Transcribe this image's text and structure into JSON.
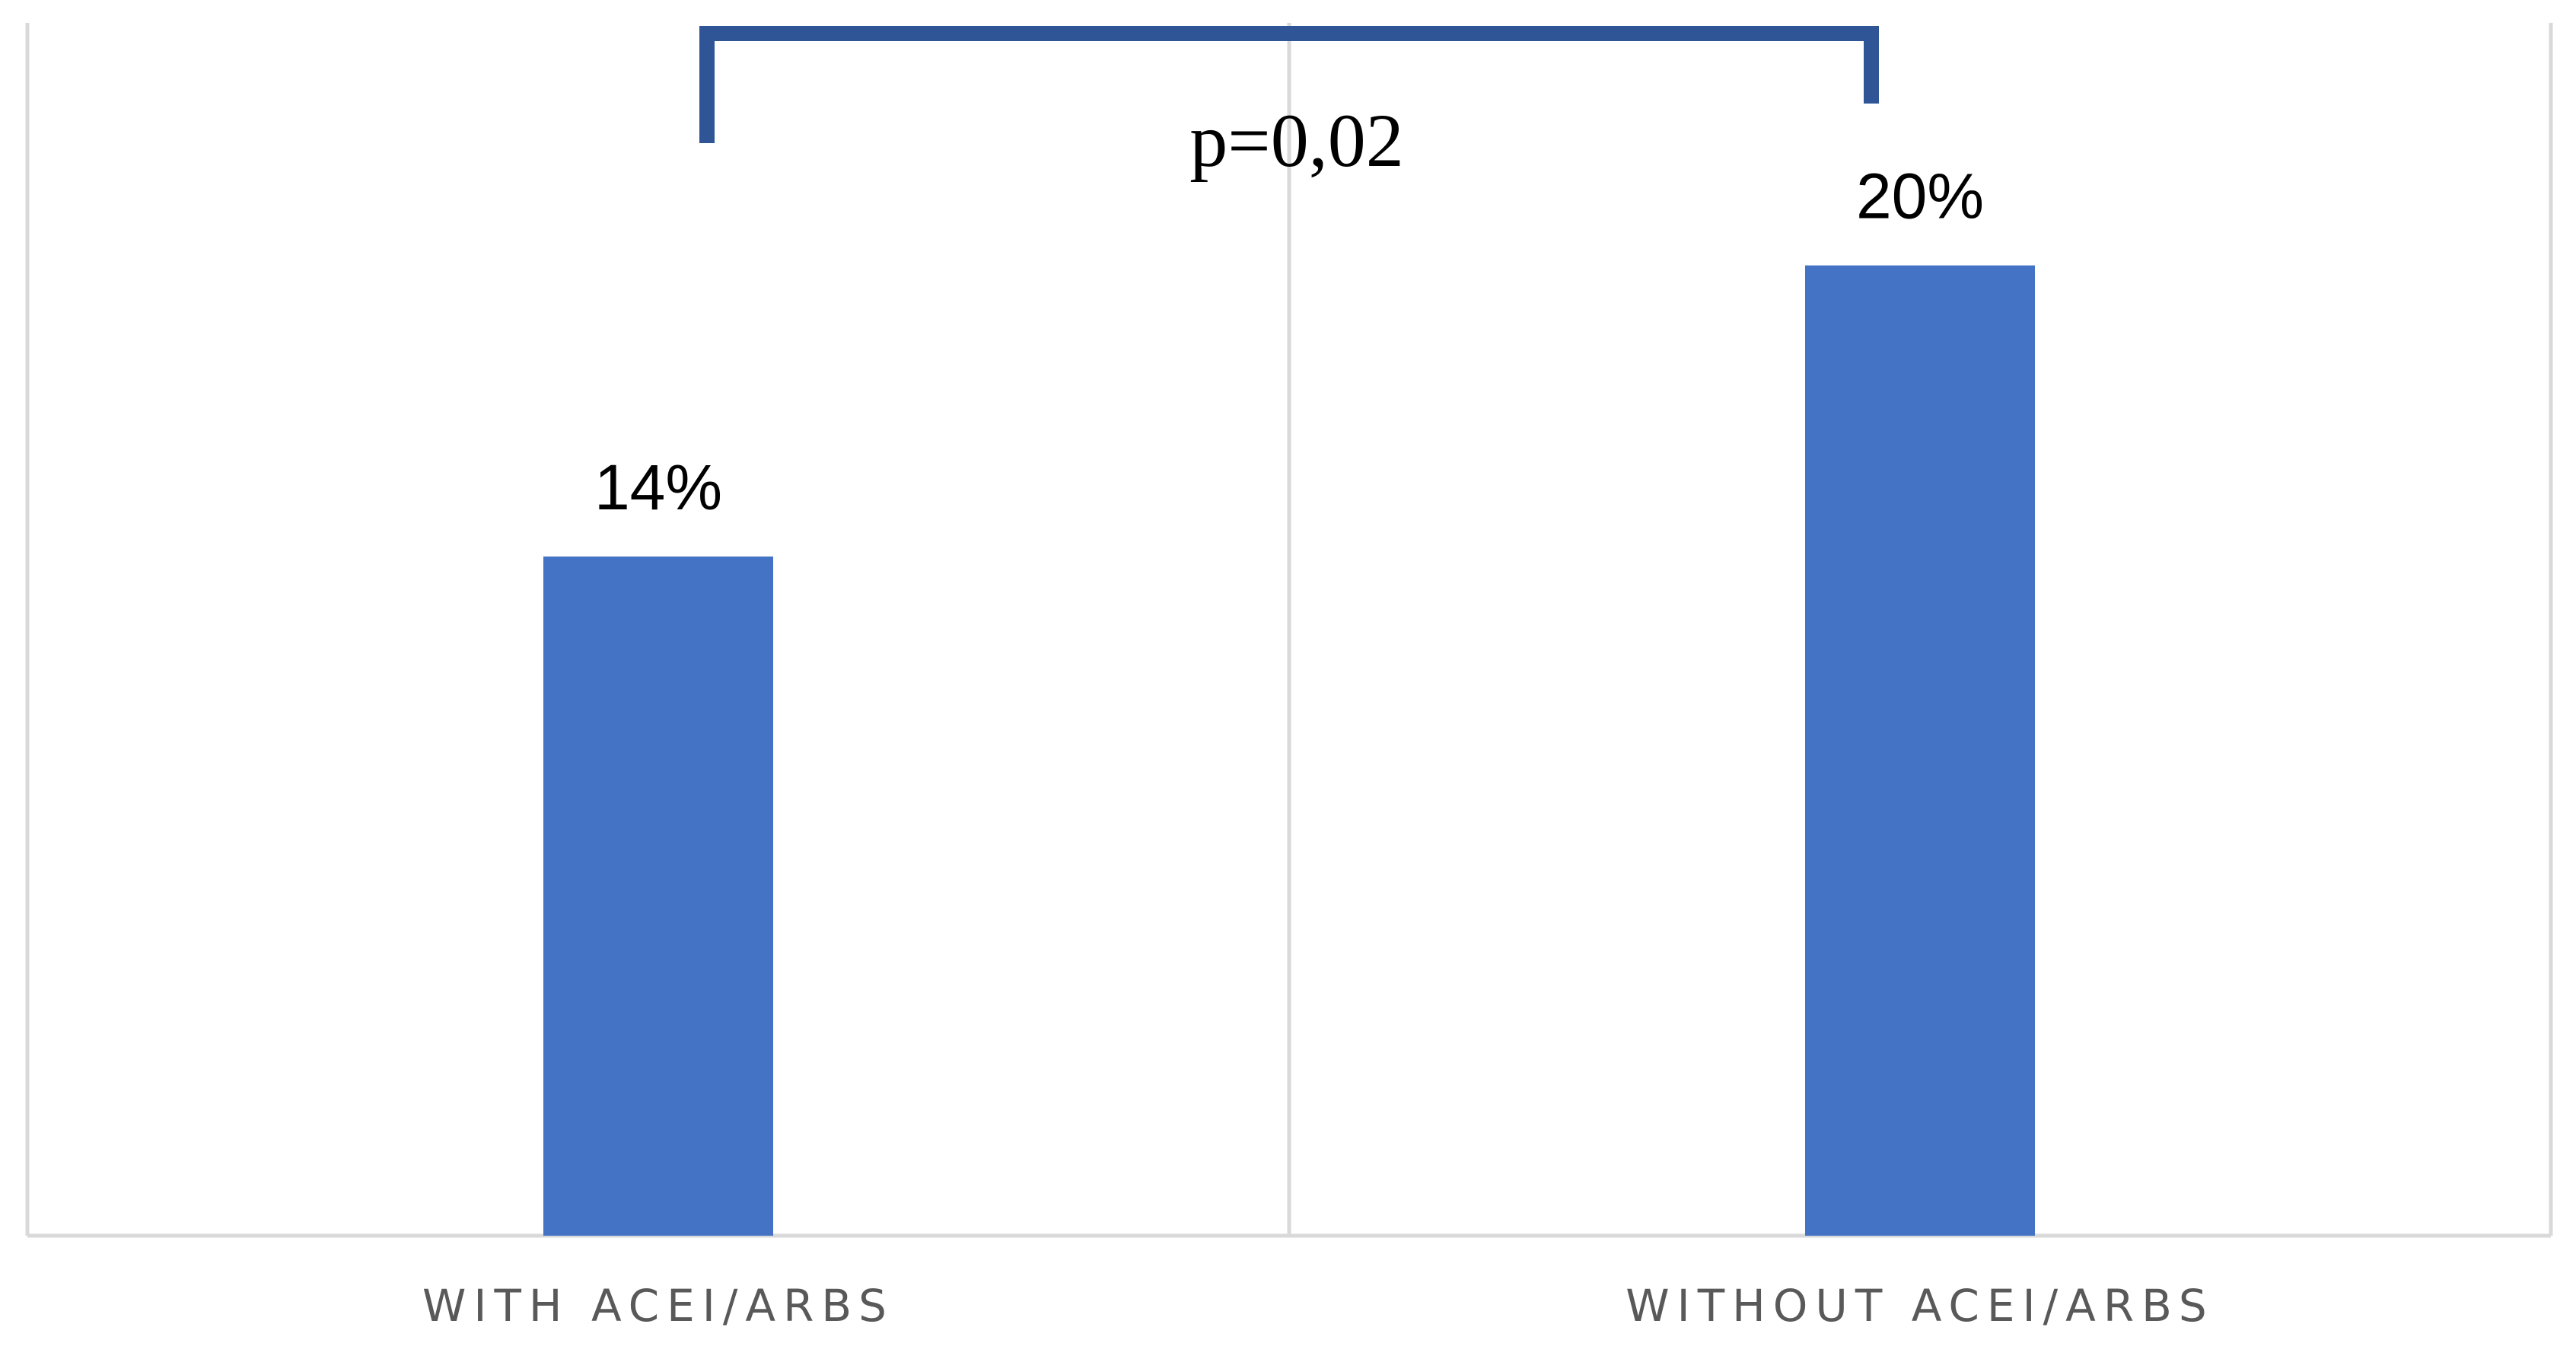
{
  "chart_data": {
    "type": "bar",
    "categories": [
      "WITH ACEI/ARBS",
      "WITHOUT ACEI/ARBS"
    ],
    "values": [
      14,
      20
    ],
    "value_labels": [
      "14%",
      "20%"
    ],
    "unit": "%",
    "ylim": [
      0,
      25
    ],
    "grid": true,
    "legend": "none",
    "annotation": {
      "type": "significance-bracket",
      "text": "p=0,02",
      "between": [
        "WITH ACEI/ARBS",
        "WITHOUT ACEI/ARBS"
      ]
    },
    "colors": {
      "bar": "#4472C4",
      "bracket": "#2F5597",
      "grid": "#D9D9D9",
      "category_text": "#595959"
    }
  }
}
